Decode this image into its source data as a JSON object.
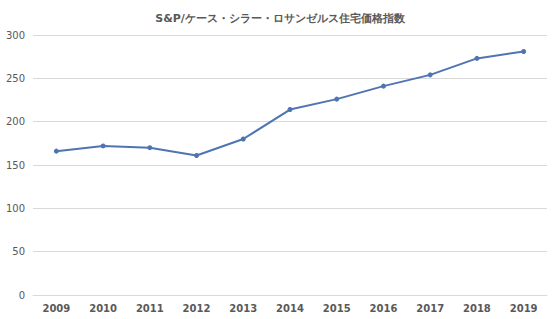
{
  "chart_data": {
    "type": "line",
    "title": "S&P/ケース・シラー・ロサンゼルス住宅価格指数",
    "categories": [
      "2009",
      "2010",
      "2011",
      "2012",
      "2013",
      "2014",
      "2015",
      "2016",
      "2017",
      "2018",
      "2019"
    ],
    "values": [
      166,
      172,
      170,
      161,
      180,
      214,
      226,
      241,
      254,
      273,
      281
    ],
    "color": "#4f74b3",
    "marker": "circle",
    "ylim": [
      0,
      300
    ],
    "yticks": [
      0,
      50,
      100,
      150,
      200,
      250,
      300
    ],
    "grid": true
  }
}
